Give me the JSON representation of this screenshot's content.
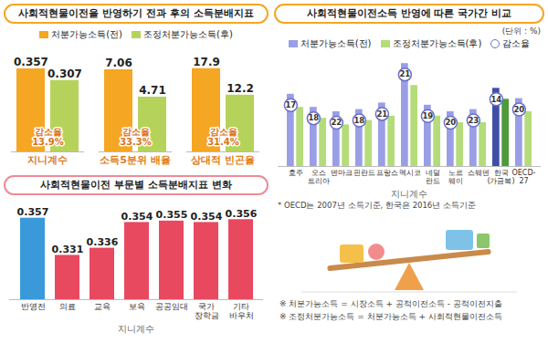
{
  "chart_data": [
    {
      "type": "bar",
      "title": "사회적현물이전을 반영하기 전과 후의 소득분배지표",
      "legend": "top",
      "categories": [
        "지니계수",
        "소득5분위 배율",
        "상대적 빈곤율"
      ],
      "series": [
        {
          "name": "처분가능소득(전)",
          "color": "#f5a623",
          "values": [
            0.357,
            7.06,
            17.9
          ]
        },
        {
          "name": "조정처분가능소득(후)",
          "color": "#b5d35a",
          "values": [
            0.307,
            4.71,
            12.2
          ]
        }
      ],
      "ylims": [
        [
          0,
          0.4
        ],
        [
          0,
          8
        ],
        [
          0,
          20
        ]
      ],
      "annotations": [
        "감소율 13.9%",
        "감소율 33.3%",
        "감소율 31.4%"
      ],
      "data_labels": true,
      "tick_labels": false
    },
    {
      "type": "bar",
      "title": "사회적현물이전소득 반영에 따른 국가간 비교",
      "subtitle": "(단위 : %)",
      "legend": "top",
      "categories": [
        "호주",
        "오스트리아",
        "덴마크",
        "핀란드",
        "프랑스",
        "멕시코",
        "네덜란드",
        "노르웨이",
        "스웨덴",
        "한국(가금복)",
        "OECD-27"
      ],
      "series": [
        {
          "name": "처분가능소득(전)",
          "color": "#9a9ee6",
          "colors": [
            "#9a9ee6",
            "#9a9ee6",
            "#9a9ee6",
            "#9a9ee6",
            "#9a9ee6",
            "#9a9ee6",
            "#9a9ee6",
            "#9a9ee6",
            "#9a9ee6",
            "#3f4fa8",
            "#9a9ee6"
          ],
          "values": [
            0.33,
            0.27,
            0.25,
            0.26,
            0.29,
            0.47,
            0.28,
            0.25,
            0.26,
            0.357,
            0.31
          ]
        },
        {
          "name": "조정처분가능소득(후)",
          "color": "#b5dc7a",
          "colors": [
            "#b5dc7a",
            "#b5dc7a",
            "#b5dc7a",
            "#b5dc7a",
            "#b5dc7a",
            "#b5dc7a",
            "#b5dc7a",
            "#b5dc7a",
            "#b5dc7a",
            "#4e9a3c",
            "#b5dc7a"
          ],
          "values": [
            0.27,
            0.22,
            0.19,
            0.21,
            0.23,
            0.37,
            0.23,
            0.2,
            0.2,
            0.307,
            0.25
          ]
        }
      ],
      "reduction": {
        "name": "감소율",
        "values": [
          17,
          18,
          22,
          18,
          21,
          21,
          19,
          20,
          23,
          14,
          20
        ]
      },
      "xlabel": "지니계수",
      "note": "* OECD는 2007년 소득기준, 한국은 2016년 소득기준",
      "ylim": [
        0,
        0.5
      ],
      "tick_labels": "x"
    },
    {
      "type": "bar",
      "title": "사회적현물이전 부문별 소득분배지표 변화",
      "categories": [
        "반영전",
        "의료",
        "교육",
        "보육",
        "공공임대",
        "국가장학금",
        "기타바우처"
      ],
      "values": [
        0.357,
        0.331,
        0.336,
        0.354,
        0.355,
        0.354,
        0.356
      ],
      "colors": [
        "#3a9ad9",
        "#e8495f",
        "#e8495f",
        "#e8495f",
        "#e8495f",
        "#e8495f",
        "#e8495f"
      ],
      "xlabel": "지니계수",
      "ylim": [
        0.3,
        0.36
      ],
      "data_labels": true,
      "tick_labels": "x"
    }
  ],
  "notes": [
    "※ 처분가능소득 = 시장소득 + 공적이전소득 - 공적이전지출",
    "※ 조정처분가능소득 = 처분가능소득 + 사회적현물이전소득"
  ]
}
